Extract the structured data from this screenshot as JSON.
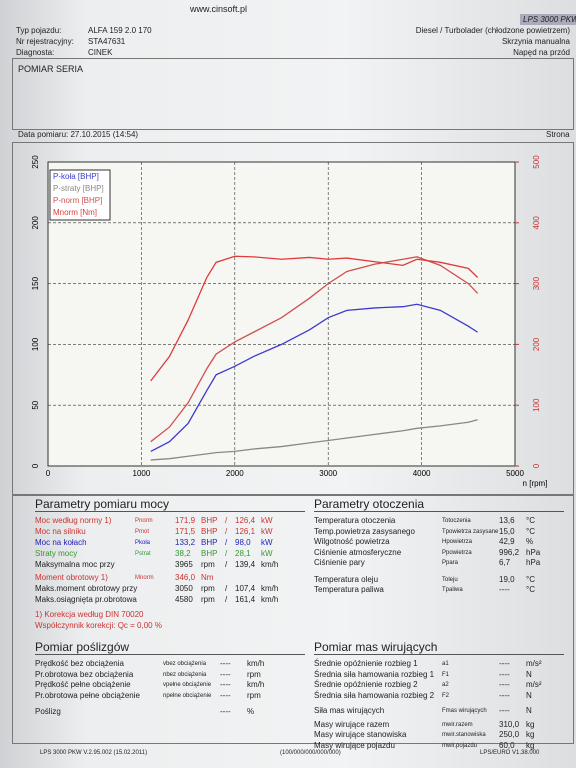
{
  "header": {
    "site": "www.cinsoft.pl",
    "product": "LPS 3000 PKW",
    "vehicle": [
      {
        "label": "Typ pojazdu:",
        "value": "ALFA 159 2.0 170"
      },
      {
        "label": "Nr rejestracyjny:",
        "value": "STA47631"
      },
      {
        "label": "Diagnosta:",
        "value": "CINEK"
      }
    ],
    "engine": [
      "Diesel / Turbolader (chłodzone powietrzem)",
      "Skrzynia manualna",
      "Napęd na przód"
    ],
    "measurement": "POMIAR SERIA",
    "date": "Data pomiaru: 27.10.2015 (14:54)",
    "page": "Strona"
  },
  "chart_data": {
    "type": "line",
    "xlabel": "n [rpm]",
    "x": [
      1100,
      1300,
      1500,
      1700,
      1800,
      2000,
      2200,
      2500,
      2800,
      3000,
      3200,
      3500,
      3800,
      3950,
      4200,
      4500,
      4600
    ],
    "series": [
      {
        "name": "P-koła [BHP]",
        "color": "#3a3ad0",
        "values": [
          12,
          20,
          35,
          62,
          75,
          82,
          90,
          100,
          112,
          122,
          128,
          130,
          131,
          133,
          128,
          115,
          110
        ]
      },
      {
        "name": "P-straty [BHP]",
        "color": "#888888",
        "values": [
          5,
          6,
          8,
          10,
          11,
          12,
          14,
          16,
          19,
          21,
          23,
          26,
          29,
          31,
          33,
          36,
          38
        ]
      },
      {
        "name": "P-norm [BHP]",
        "color": "#d05050",
        "values": [
          20,
          32,
          52,
          80,
          92,
          102,
          110,
          122,
          138,
          150,
          160,
          166,
          170,
          172,
          165,
          150,
          142
        ]
      },
      {
        "name": "Mnorm [Nm]",
        "color": "#e03a3a",
        "axis": "y2",
        "values": [
          140,
          180,
          240,
          310,
          335,
          345,
          344,
          340,
          343,
          340,
          342,
          336,
          330,
          340,
          335,
          325,
          310
        ]
      }
    ],
    "xlim": [
      0,
      5000
    ],
    "xticks": [
      0,
      1000,
      2000,
      3000,
      4000,
      5000
    ],
    "ylim": [
      0,
      250
    ],
    "yticks": [
      0,
      50,
      100,
      150,
      200,
      250
    ],
    "y2lim": [
      0,
      500
    ],
    "y2ticks": [
      0,
      100,
      200,
      300,
      400,
      500
    ],
    "grid": true
  },
  "power": {
    "title": "Parametry pomiaru mocy",
    "rows": [
      {
        "label": "Moc według normy 1)",
        "symbol": "Pnorm",
        "value": "171,9",
        "unit": "BHP",
        "sep": "/",
        "value2": "126,4",
        "unit2": "kW"
      },
      {
        "label": "Moc na silniku",
        "symbol": "Pmot",
        "value": "171,5",
        "unit": "BHP",
        "sep": "/",
        "value2": "126,1",
        "unit2": "kW"
      },
      {
        "label": "Moc na kołach",
        "symbol": "Pkoła",
        "value": "133,2",
        "unit": "BHP",
        "sep": "/",
        "value2": "98,0",
        "unit2": "kW"
      },
      {
        "label": "Straty mocy",
        "symbol": "Pstrat",
        "value": "38,2",
        "unit": "BHP",
        "sep": "/",
        "value2": "28,1",
        "unit2": "kW"
      },
      {
        "label": "Maksymalna moc przy",
        "value": "3965",
        "unit": "rpm",
        "sep": "/",
        "value2": "139,4",
        "unit2": "km/h"
      },
      {
        "label": "Moment obrotowy 1)",
        "symbol": "Mnorm",
        "value": "346,0",
        "unit": "Nm"
      },
      {
        "label": "Maks.moment obrotowy przy",
        "value": "3050",
        "unit": "rpm",
        "sep": "/",
        "value2": "107,4",
        "unit2": "km/h"
      },
      {
        "label": "Maks.osiągnięta pr.obrotowa",
        "value": "4580",
        "unit": "rpm",
        "sep": "/",
        "value2": "161,4",
        "unit2": "km/h"
      },
      {
        "label": "1) Korekcja według DIN 70020"
      },
      {
        "label": "Współczynnik korekcji: Qc = 0,00 %"
      }
    ]
  },
  "ambient": {
    "title": "Parametry otoczenia",
    "rows": [
      {
        "label": "Temperatura otoczenia",
        "symbol": "Totoczenia",
        "value": "13,6",
        "unit": "°C"
      },
      {
        "label": "Temp.powietrza zasysanego",
        "symbol": "Tpowietrza zasysane",
        "value": "15,0",
        "unit": "°C"
      },
      {
        "label": "Wilgotność powietrza",
        "symbol": "Hpowietrza",
        "value": "42,9",
        "unit": "%"
      },
      {
        "label": "Ciśnienie atmosferyczne",
        "symbol": "Ppowietrza",
        "value": "996,2",
        "unit": "hPa"
      },
      {
        "label": "Ciśnienie pary",
        "symbol": "Ppara",
        "value": "6,7",
        "unit": "hPa"
      },
      {
        "label": "Temperatura oleju",
        "symbol": "Toleju",
        "value": "19,0",
        "unit": "°C"
      },
      {
        "label": "Temperatura paliwa",
        "symbol": "Tpaliwa",
        "value": "----",
        "unit": "°C"
      }
    ]
  },
  "slip": {
    "title": "Pomiar poślizgów",
    "rows": [
      {
        "label": "Prędkość bez obciążenia",
        "symbol": "vbez obciążenia",
        "value": "----",
        "unit": "km/h"
      },
      {
        "label": "Pr.obrotowa bez obciążenia",
        "symbol": "nbez obciążenia",
        "value": "----",
        "unit": "rpm"
      },
      {
        "label": "Prędkość pełne obciążenie",
        "symbol": "vpełne obciążenie",
        "value": "----",
        "unit": "km/h"
      },
      {
        "label": "Pr.obrotowa pełne obciążenie",
        "symbol": "npełne obciążenie",
        "value": "----",
        "unit": "rpm"
      },
      {
        "label": "Poślizg",
        "value": "----",
        "unit": "%"
      }
    ]
  },
  "mass": {
    "title": "Pomiar mas wirujących",
    "rows": [
      {
        "label": "Średnie opóźnienie rozbieg 1",
        "symbol": "a1",
        "value": "----",
        "unit": "m/s²"
      },
      {
        "label": "Średnia siła hamowania rozbieg 1",
        "symbol": "F1",
        "value": "----",
        "unit": "N"
      },
      {
        "label": "Średnie opóźnienie rozbieg 2",
        "symbol": "a2",
        "value": "----",
        "unit": "m/s²"
      },
      {
        "label": "Średnia siła hamowania rozbieg 2",
        "symbol": "F2",
        "value": "----",
        "unit": "N"
      },
      {
        "label": "Siła mas wirujących",
        "symbol": "Fmas wirujących",
        "value": "----",
        "unit": "N"
      },
      {
        "label": "Masy wirujące razem",
        "symbol": "mwir.razem",
        "value": "310,0",
        "unit": "kg"
      },
      {
        "label": "Masy wirujące stanowiska",
        "symbol": "mwir.stanowiska",
        "value": "250,0",
        "unit": "kg"
      },
      {
        "label": "Masy wirujące pojazdu",
        "symbol": "mwir.pojazdu",
        "value": "60,0",
        "unit": "kg"
      }
    ]
  },
  "footer": [
    "LPS 3000 PKW V.2.95.002 (15.02.2011)",
    "(100/000/000/000/000)",
    "LPS/EURO V1.38.000"
  ]
}
